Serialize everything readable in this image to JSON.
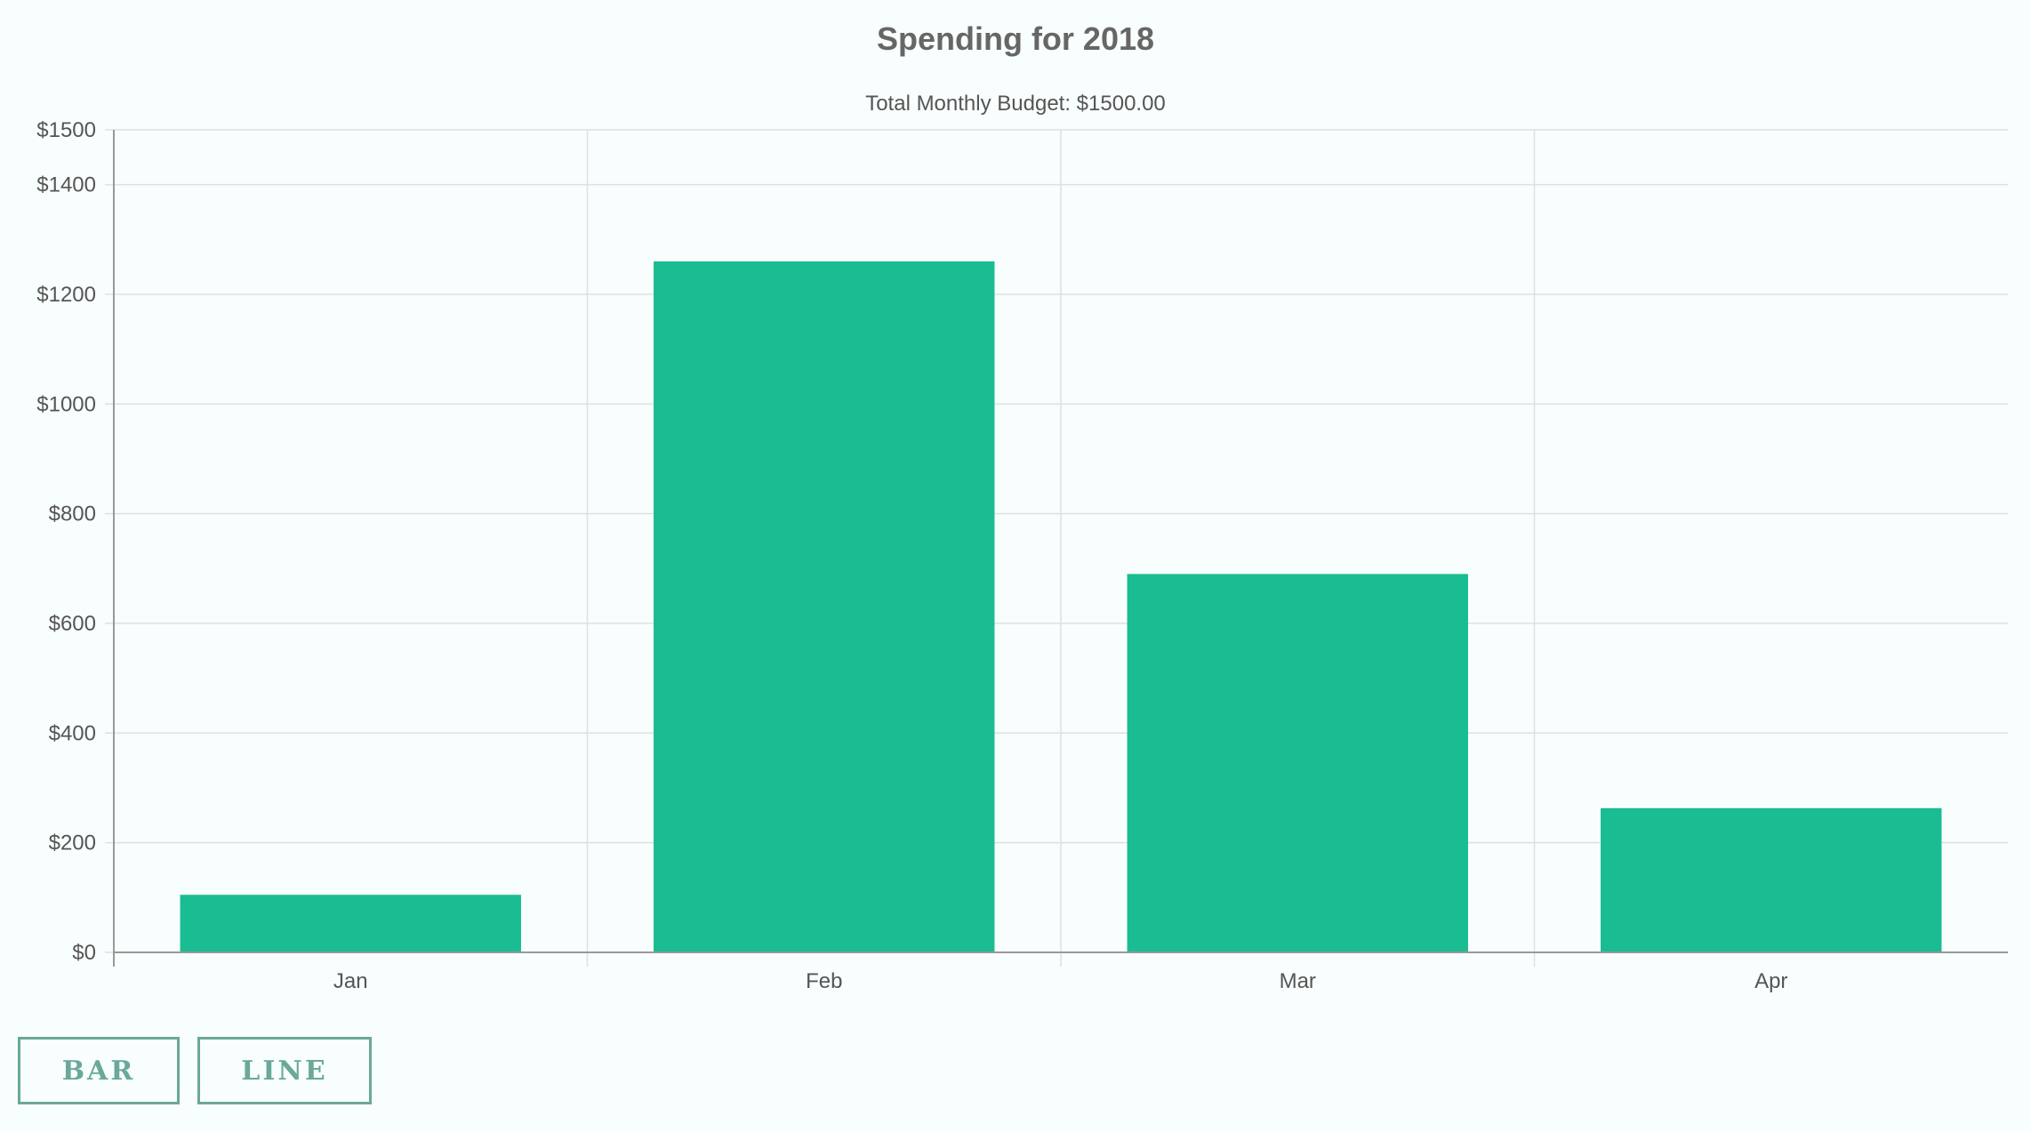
{
  "chart_data": {
    "type": "bar",
    "title": "Spending for 2018",
    "subtitle": "Total Monthly Budget: $1500.00",
    "categories": [
      "Jan",
      "Feb",
      "Mar",
      "Apr"
    ],
    "values": [
      105,
      1260,
      690,
      263
    ],
    "ylim": [
      0,
      1500
    ],
    "yticks": [
      0,
      200,
      400,
      600,
      800,
      1000,
      1200,
      1400,
      1500
    ],
    "ytick_labels": [
      "$0",
      "$200",
      "$400",
      "$600",
      "$800",
      "$1000",
      "$1200",
      "$1400",
      "$1500"
    ],
    "xlabel": "",
    "ylabel": "",
    "grid": true,
    "colors": {
      "bar": "#1abc91",
      "grid": "#e0e0e0",
      "axis": "#999999"
    }
  },
  "controls": {
    "bar_label": "BAR",
    "line_label": "LINE",
    "accent": "#6aa89a"
  }
}
